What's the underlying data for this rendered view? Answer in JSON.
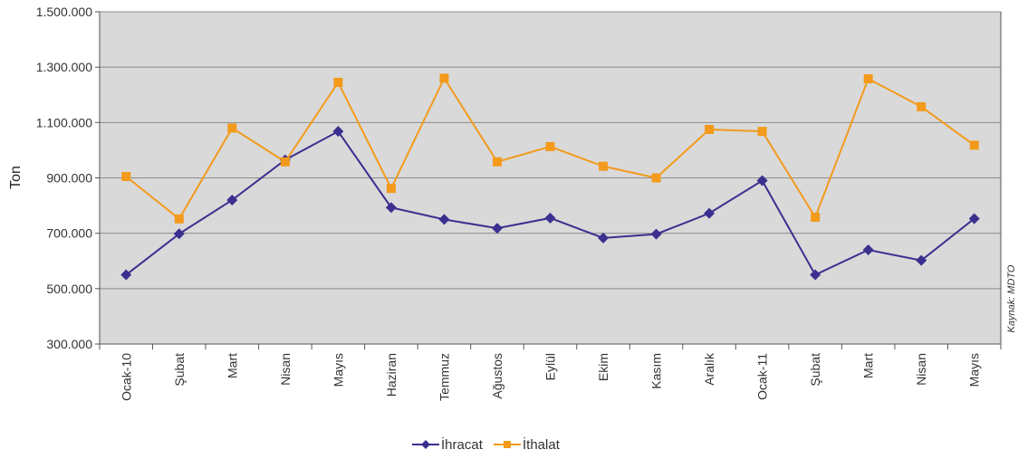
{
  "chart_data": {
    "type": "line",
    "title": "",
    "xlabel": "",
    "ylabel": "Ton",
    "source_note": "Kaynak: MDTO",
    "categories": [
      "Ocak-10",
      "Şubat",
      "Mart",
      "Nisan",
      "Mayıs",
      "Haziran",
      "Temmuz",
      "Ağustos",
      "Eylül",
      "Ekim",
      "Kasım",
      "Aralık",
      "Ocak-11",
      "Şubat",
      "Mart",
      "Nisan",
      "Mayıs"
    ],
    "ylim": [
      300000,
      1500000
    ],
    "yticks": [
      300000,
      500000,
      700000,
      900000,
      1100000,
      1300000,
      1500000
    ],
    "ytick_labels": [
      "300.000",
      "500.000",
      "700.000",
      "900.000",
      "1.100.000",
      "1.300.000",
      "1.500.000"
    ],
    "grid": true,
    "legend_position": "bottom",
    "background_color": "#d9d9d9",
    "series": [
      {
        "name": "İhracat",
        "color": "#3b2f8f",
        "marker": "diamond",
        "values": [
          550000,
          698000,
          820000,
          965000,
          1068000,
          793000,
          750000,
          718000,
          755000,
          683000,
          697000,
          772000,
          890000,
          550000,
          640000,
          602000,
          753000
        ]
      },
      {
        "name": "İthalat",
        "color": "#f39a1b",
        "marker": "square",
        "values": [
          905000,
          752000,
          1080000,
          958000,
          1245000,
          862000,
          1260000,
          958000,
          1013000,
          942000,
          900000,
          1075000,
          1068000,
          758000,
          1258000,
          1157000,
          1018000
        ]
      }
    ]
  }
}
